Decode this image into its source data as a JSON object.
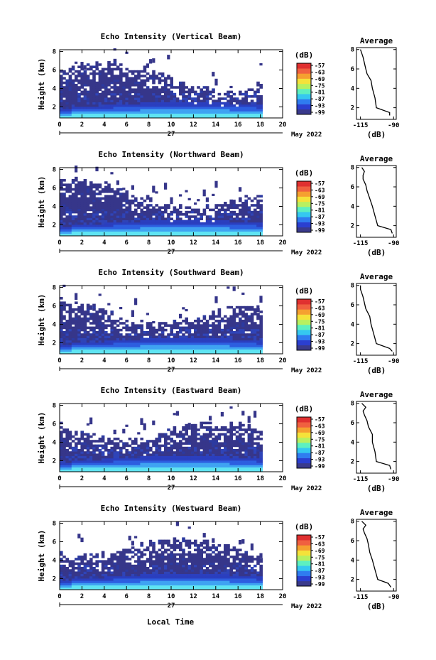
{
  "common": {
    "x_ticks": [
      0,
      2,
      4,
      6,
      8,
      10,
      12,
      14,
      16,
      18,
      20
    ],
    "xlim": [
      0,
      20
    ],
    "data_end_hour": 18,
    "y_ticks": [
      2,
      4,
      6,
      8
    ],
    "ylim": [
      0.8,
      8.2
    ],
    "ylabel": "Height (km)",
    "date_day": "27",
    "date_month": "May 2022",
    "xlabel": "Local Time",
    "colorbar_unit": "(dB)",
    "colorbar_ticks": [
      "-57",
      "-63",
      "-69",
      "-75",
      "-81",
      "-87",
      "-93",
      "-99"
    ],
    "colorbar_colors": [
      "#3a3a8c",
      "#2b3fd0",
      "#2f7cf0",
      "#35c8f0",
      "#5df0c0",
      "#b8f060",
      "#f5e23a",
      "#f5a030",
      "#f06040",
      "#e03030"
    ],
    "avg_title": "Average",
    "avg_x_ticks": [
      "-115",
      "-90"
    ],
    "avg_y_ticks": [
      2,
      4,
      6,
      8
    ],
    "avg_xlabel": "(dB)"
  },
  "chart_data": [
    {
      "type": "heatmap",
      "title": "Echo Intensity (Vertical Beam)",
      "profile": {
        "type": "line",
        "x": [
          -93,
          -93,
          -103,
          -104,
          -106,
          -107,
          -110,
          -111,
          -112,
          -113,
          -114,
          -115
        ],
        "y": [
          1.2,
          1.5,
          2.0,
          3.0,
          4.0,
          4.8,
          5.5,
          6.0,
          6.6,
          7.2,
          7.6,
          8.0
        ]
      }
    },
    {
      "type": "heatmap",
      "title": "Echo Intensity (Northward Beam)",
      "profile": {
        "type": "line",
        "x": [
          -91,
          -92,
          -102,
          -104,
          -106,
          -108,
          -110,
          -111,
          -113,
          -113,
          -112,
          -114
        ],
        "y": [
          1.2,
          1.6,
          2.0,
          3.0,
          4.0,
          4.8,
          5.6,
          6.2,
          6.8,
          7.2,
          7.6,
          8.0
        ]
      }
    },
    {
      "type": "heatmap",
      "title": "Echo Intensity (Southward Beam)",
      "profile": {
        "type": "line",
        "x": [
          -91,
          -93,
          -103,
          -105,
          -107,
          -108,
          -111,
          -112,
          -113,
          -114,
          -115,
          -115
        ],
        "y": [
          1.2,
          1.5,
          2.0,
          3.0,
          4.0,
          4.8,
          5.6,
          6.2,
          6.8,
          7.2,
          7.6,
          8.0
        ]
      }
    },
    {
      "type": "heatmap",
      "title": "Echo Intensity (Eastward Beam)",
      "profile": {
        "type": "line",
        "x": [
          -92,
          -93,
          -103,
          -104,
          -106,
          -106,
          -109,
          -110,
          -112,
          -113,
          -111,
          -114
        ],
        "y": [
          1.2,
          1.6,
          2.0,
          3.0,
          4.0,
          4.8,
          5.6,
          6.2,
          6.8,
          7.2,
          7.6,
          8.0
        ]
      }
    },
    {
      "type": "heatmap",
      "title": "Echo Intensity (Westward Beam)",
      "profile": {
        "type": "line",
        "x": [
          -92,
          -94,
          -102,
          -104,
          -106,
          -108,
          -109,
          -110,
          -112,
          -113,
          -111,
          -114
        ],
        "y": [
          1.2,
          1.6,
          2.0,
          3.0,
          4.0,
          4.8,
          5.6,
          6.2,
          6.8,
          7.2,
          7.6,
          8.0
        ]
      }
    }
  ]
}
